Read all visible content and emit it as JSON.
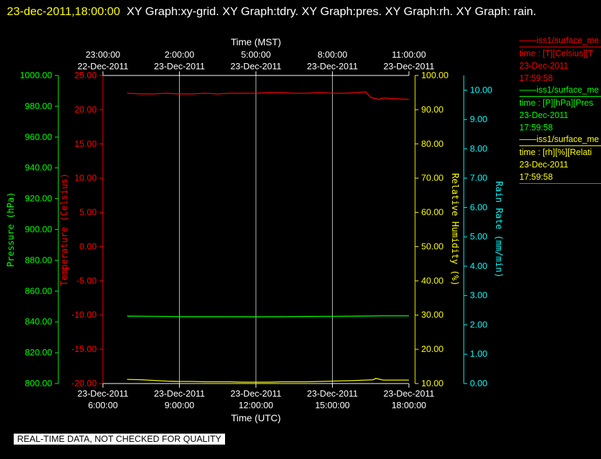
{
  "header": {
    "timestamp": "23-dec-2011,18:00:00",
    "graphs": "XY Graph:xy-grid.  XY Graph:tdry.  XY Graph:pres.  XY Graph:rh.  XY Graph: rain."
  },
  "legend": [
    {
      "name": "iss1/surface_me",
      "line1": "time : [T][Celsius][T",
      "date": "23-Dec-2011",
      "time": "17:59:58",
      "color": "#ff0000"
    },
    {
      "name": "iss1/surface_me",
      "line1": "time : [P][hPa][Pres",
      "date": "23-Dec-2011",
      "time": "17:59:58",
      "color": "#00ff00"
    },
    {
      "name": "iss1/surface_me",
      "line1": "time : [rh][%][Relati",
      "date": "23-Dec-2011",
      "time": "17:59:58",
      "color": "#ffff00"
    }
  ],
  "notice": "REAL-TIME DATA, NOT CHECKED FOR QUALITY",
  "chart_data": {
    "type": "line",
    "grid": true,
    "x_bottom": {
      "label": "Time (UTC)",
      "range": [
        "23-Dec-2011 6:00:00",
        "23-Dec-2011 18:00:00"
      ],
      "ticks": [
        {
          "date": "23-Dec-2011",
          "time": "6:00:00",
          "hour": 6
        },
        {
          "date": "23-Dec-2011",
          "time": "9:00:00",
          "hour": 9
        },
        {
          "date": "23-Dec-2011",
          "time": "12:00:00",
          "hour": 12
        },
        {
          "date": "23-Dec-2011",
          "time": "15:00:00",
          "hour": 15
        },
        {
          "date": "23-Dec-2011",
          "time": "18:00:00",
          "hour": 18
        }
      ]
    },
    "x_top": {
      "label": "Time (MST)",
      "ticks": [
        {
          "time": "23:00:00",
          "date": "22-Dec-2011",
          "hour": 6
        },
        {
          "time": "2:00:00",
          "date": "23-Dec-2011",
          "hour": 9
        },
        {
          "time": "5:00:00",
          "date": "23-Dec-2011",
          "hour": 12
        },
        {
          "time": "8:00:00",
          "date": "23-Dec-2011",
          "hour": 15
        },
        {
          "time": "11:00:00",
          "date": "23-Dec-2011",
          "hour": 18
        }
      ]
    },
    "axes": [
      {
        "id": "pres",
        "label": "Pressure (hPa)",
        "color": "#00ff00",
        "range": [
          800,
          1000
        ],
        "ticks": [
          "800.00",
          "820.00",
          "840.00",
          "860.00",
          "880.00",
          "900.00",
          "920.00",
          "940.00",
          "960.00",
          "980.00",
          "1000.00"
        ]
      },
      {
        "id": "temp",
        "label": "Temperature (Celsius)",
        "color": "#ff0000",
        "range": [
          -20,
          25
        ],
        "ticks": [
          "-20.00",
          "-15.00",
          "-10.00",
          "-5.00",
          "0.00",
          "5.00",
          "10.00",
          "15.00",
          "20.00",
          "25.00"
        ]
      },
      {
        "id": "rh",
        "label": "Relative Humidity (%)",
        "color": "#ffff00",
        "range": [
          10,
          100
        ],
        "ticks": [
          "10.00",
          "20.00",
          "30.00",
          "40.00",
          "50.00",
          "60.00",
          "70.00",
          "80.00",
          "90.00",
          "100.00"
        ]
      },
      {
        "id": "rain",
        "label": "Rain Rate (mm/min)",
        "color": "#00ffff",
        "range": [
          0,
          10.5
        ],
        "ticks": [
          "0.00",
          "1.00",
          "2.00",
          "3.00",
          "4.00",
          "5.00",
          "6.00",
          "7.00",
          "8.00",
          "9.00",
          "10.00"
        ]
      }
    ],
    "series": [
      {
        "axis": "temp",
        "color": "#ff0000",
        "x": [
          6.95,
          7.5,
          8,
          8.5,
          9,
          9.5,
          10,
          10.5,
          11,
          11.5,
          12,
          12.5,
          13,
          13.5,
          14,
          14.5,
          15,
          15.5,
          16,
          16.3,
          16.5,
          16.8,
          17,
          17.5,
          18
        ],
        "y": [
          22.4,
          22.3,
          22.3,
          22.4,
          22.3,
          22.3,
          22.4,
          22.3,
          22.4,
          22.4,
          22.4,
          22.5,
          22.5,
          22.4,
          22.4,
          22.5,
          22.4,
          22.4,
          22.5,
          22.6,
          21.8,
          21.5,
          21.7,
          21.6,
          21.5
        ]
      },
      {
        "axis": "pres",
        "color": "#00ff00",
        "x": [
          6.95,
          8,
          9,
          10,
          11,
          12,
          13,
          14,
          15,
          16,
          17,
          18
        ],
        "y": [
          843.8,
          843.6,
          843.4,
          843.4,
          843.4,
          843.3,
          843.4,
          843.5,
          843.6,
          843.8,
          843.9,
          843.9
        ]
      },
      {
        "axis": "rh",
        "color": "#ffff00",
        "x": [
          6.95,
          7.5,
          8,
          8.5,
          9,
          9.5,
          10,
          10.5,
          11,
          11.5,
          12,
          12.5,
          13,
          13.5,
          14,
          14.5,
          15,
          15.5,
          16,
          16.3,
          16.6,
          16.7,
          17,
          17.5,
          18
        ],
        "y": [
          11.2,
          11.1,
          10.9,
          10.7,
          10.6,
          10.6,
          10.5,
          10.5,
          10.5,
          10.4,
          10.4,
          10.4,
          10.5,
          10.5,
          10.5,
          10.6,
          10.7,
          10.8,
          10.9,
          11.0,
          11.1,
          11.5,
          11.0,
          11.0,
          11.0
        ]
      }
    ]
  }
}
